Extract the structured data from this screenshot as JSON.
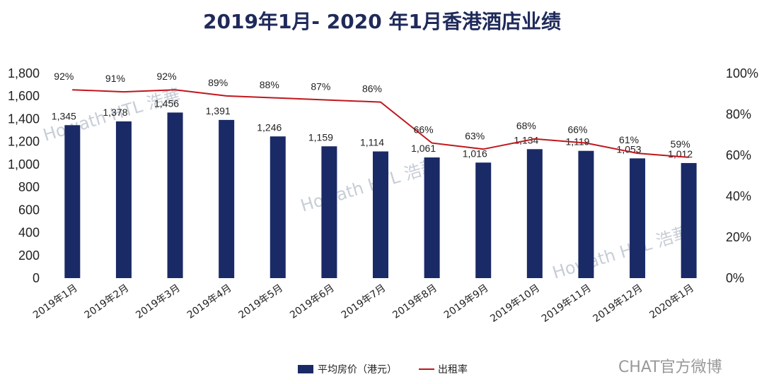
{
  "chart_data": {
    "type": "bar+line",
    "title": "2019年1月- 2020 年1月香港酒店业绩",
    "categories": [
      "2019年1月",
      "2019年2月",
      "2019年3月",
      "2019年4月",
      "2019年5月",
      "2019年6月",
      "2019年7月",
      "2019年8月",
      "2019年9月",
      "2019年10月",
      "2019年11月",
      "2019年12月",
      "2020年1月"
    ],
    "series": [
      {
        "name": "平均房价（港元）",
        "type": "bar",
        "axis": "left",
        "color": "#1a2a66",
        "values": [
          1345,
          1378,
          1456,
          1391,
          1246,
          1159,
          1114,
          1061,
          1016,
          1134,
          1119,
          1053,
          1012
        ],
        "labels": [
          "1,345",
          "1,378",
          "1,456",
          "1,391",
          "1,246",
          "1,159",
          "1,114",
          "1,061",
          "1,016",
          "1,134",
          "1,119",
          "1,053",
          "1,012"
        ]
      },
      {
        "name": "出租率",
        "type": "line",
        "axis": "right",
        "color": "#c0161d",
        "values": [
          92,
          91,
          92,
          89,
          88,
          87,
          86,
          66,
          63,
          68,
          66,
          61,
          59
        ],
        "labels": [
          "92%",
          "91%",
          "92%",
          "89%",
          "88%",
          "87%",
          "86%",
          "66%",
          "63%",
          "68%",
          "66%",
          "61%",
          "59%"
        ]
      }
    ],
    "ylim_left": [
      0,
      1800
    ],
    "yticks_left": [
      "0",
      "200",
      "400",
      "600",
      "800",
      "1,000",
      "1,200",
      "1,400",
      "1,600",
      "1,800"
    ],
    "ylim_right": [
      0,
      100
    ],
    "yticks_right": [
      "0%",
      "20%",
      "40%",
      "60%",
      "80%",
      "100%"
    ],
    "legend_position": "bottom-center",
    "grid": false
  },
  "watermarks": {
    "brand": "Howath HTL 浩華",
    "weibo": "CHAT官方微博"
  }
}
